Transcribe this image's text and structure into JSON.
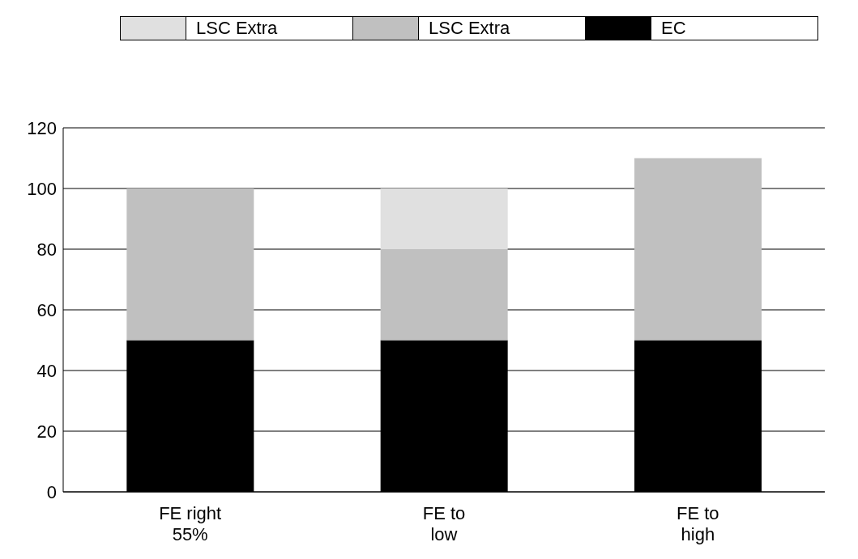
{
  "chart_data": {
    "type": "bar",
    "stacked": true,
    "categories": [
      "FE right 55%",
      "FE to low",
      "FE to high"
    ],
    "series": [
      {
        "name": "EC",
        "color": "#000000",
        "values": [
          50,
          50,
          50
        ]
      },
      {
        "name": "LSC Extra",
        "color": "#c0c0c0",
        "values": [
          50,
          30,
          60
        ]
      },
      {
        "name": "LSC Extra",
        "color": "#e0e0e0",
        "values": [
          0,
          20,
          0
        ]
      }
    ],
    "ylim": [
      0,
      120
    ],
    "yticks": [
      0,
      20,
      40,
      60,
      80,
      100,
      120
    ],
    "grid": "y",
    "legend": "top"
  }
}
